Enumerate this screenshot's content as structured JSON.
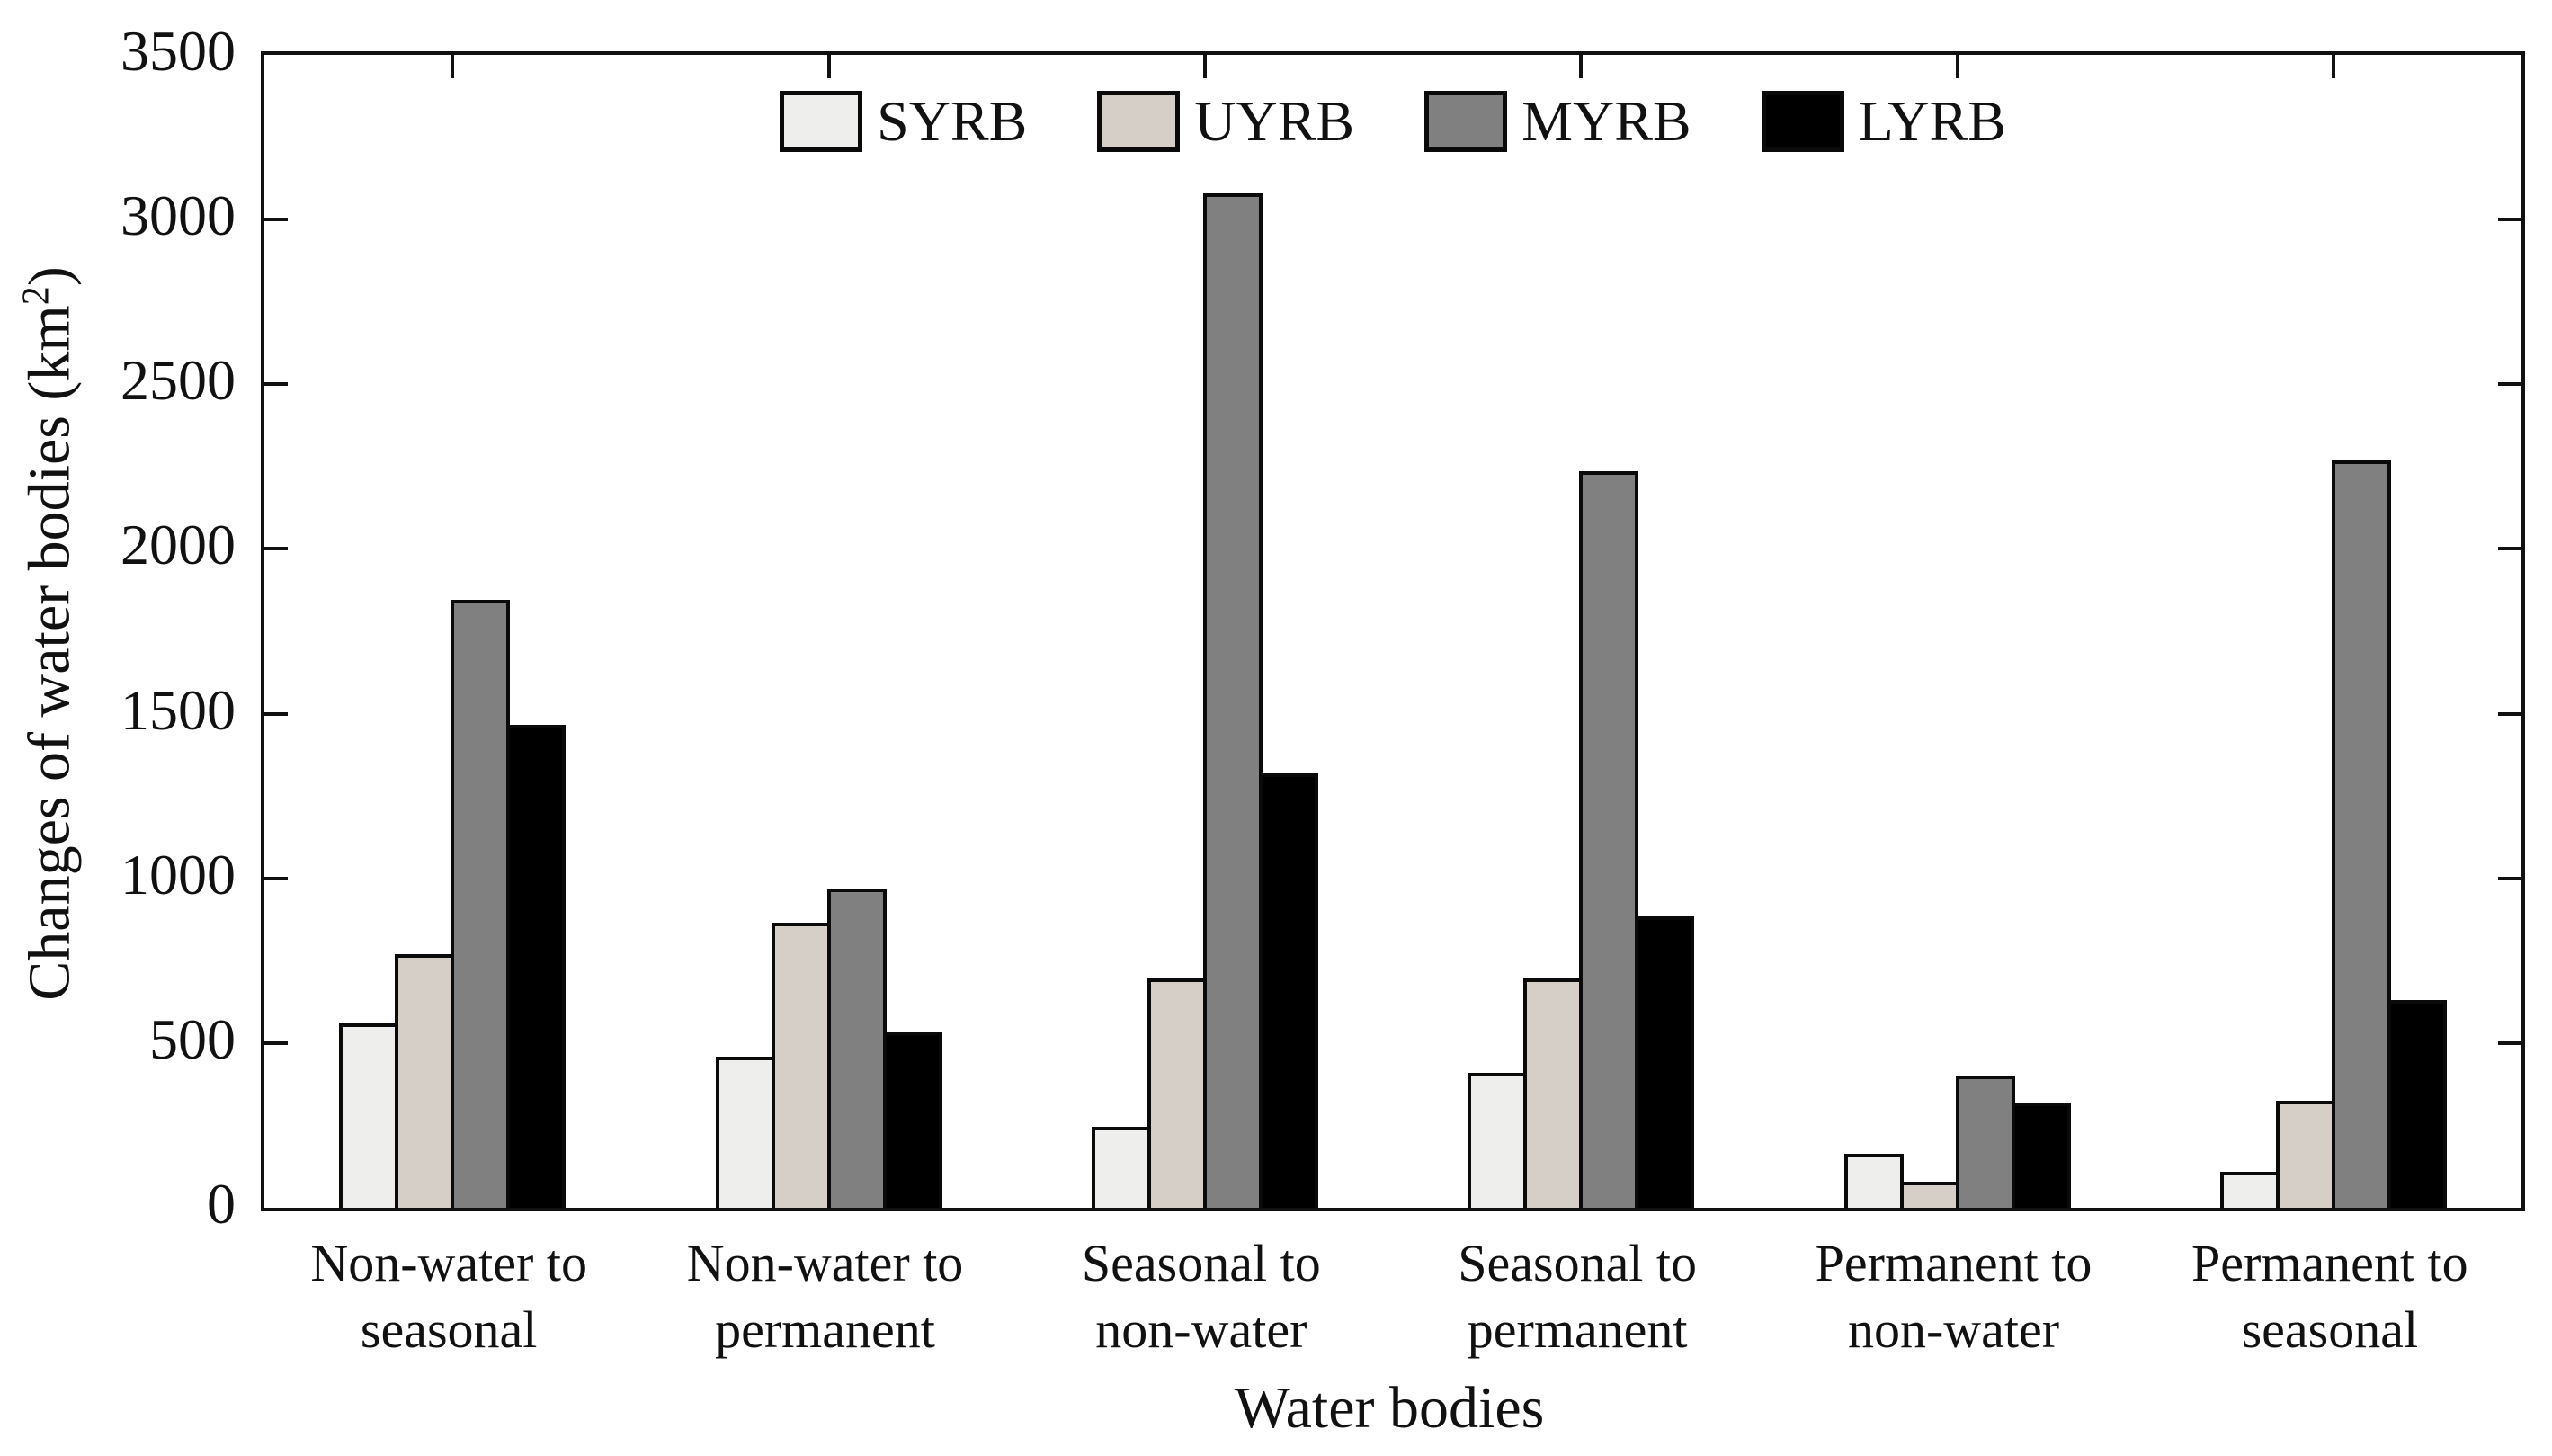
{
  "figure": {
    "ylabel_prefix": "Changes of water bodies (km",
    "ylabel_sup": "2",
    "ylabel_suffix": ")"
  },
  "chart_data": {
    "type": "bar",
    "title": "",
    "xlabel": "Water bodies",
    "ylabel": "Changes of water bodies (km²)",
    "categories": [
      "Non-water to seasonal",
      "Non-water to permanent",
      "Seasonal to non-water",
      "Seasonal to permanent",
      "Permanent to non-water",
      "Permanent to seasonal"
    ],
    "series": [
      {
        "name": "SYRB",
        "color": "#eeeeed",
        "values": [
          560,
          460,
          245,
          410,
          165,
          110
        ]
      },
      {
        "name": "UYRB",
        "color": "#d6cfc8",
        "values": [
          770,
          865,
          695,
          695,
          80,
          325
        ]
      },
      {
        "name": "MYRB",
        "color": "#808080",
        "values": [
          1845,
          970,
          3080,
          2235,
          400,
          2270
        ]
      },
      {
        "name": "LYRB",
        "color": "#000000",
        "values": [
          1465,
          535,
          1320,
          885,
          320,
          630
        ]
      }
    ],
    "ylim": [
      0,
      3500
    ],
    "yticks": [
      0,
      500,
      1000,
      1500,
      2000,
      2500,
      3000,
      3500
    ],
    "grid": false,
    "legend_position": "top-center",
    "bar_edge_color": "#0a0a0a",
    "tick_direction": "in"
  }
}
